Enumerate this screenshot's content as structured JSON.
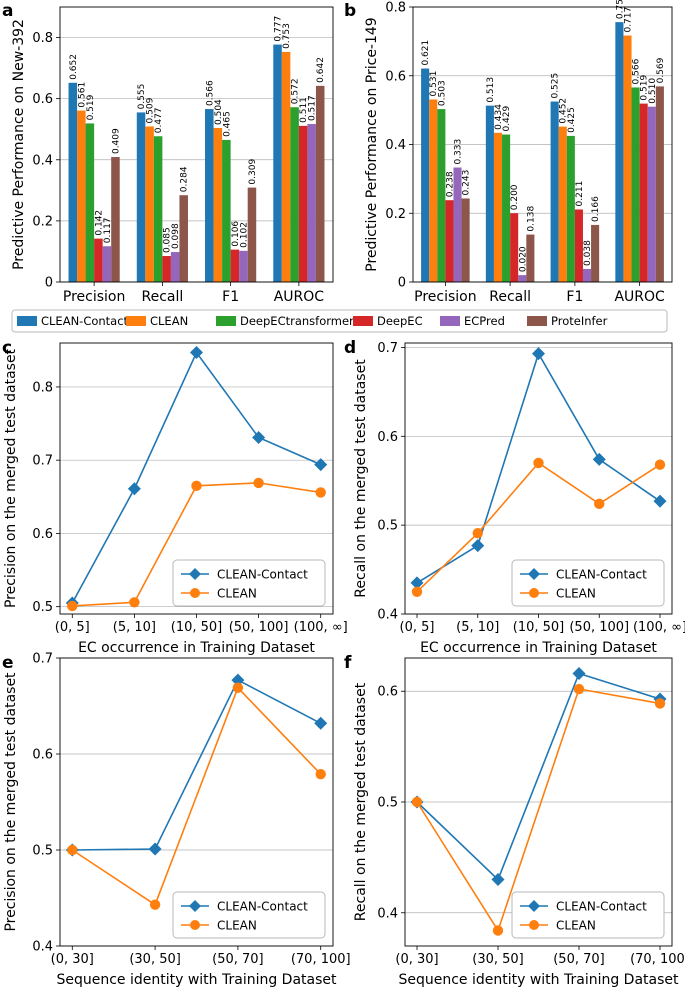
{
  "colors": {
    "CLEAN-Contact": "#1f77b4",
    "CLEAN": "#ff7f0e",
    "DeepECtransformer": "#2ca02c",
    "DeepEC": "#d62728",
    "ECPred": "#9467bd",
    "ProteInfer": "#8c564b",
    "grid": "#b0b0b0"
  },
  "chart_data": [
    {
      "panel": "a",
      "type": "bar",
      "ylabel": "Predictive Performance on New-392",
      "xlabel": "",
      "ylim": [
        0,
        0.9
      ],
      "yticks": [
        0.0,
        0.2,
        0.4,
        0.6,
        0.8
      ],
      "ytick_labels": [
        "0",
        "0.2",
        "0.4",
        "0.6",
        "0.8"
      ],
      "categories": [
        "Precision",
        "Recall",
        "F1",
        "AUROC"
      ],
      "series": [
        {
          "name": "CLEAN-Contact",
          "values": [
            0.652,
            0.555,
            0.566,
            0.777
          ],
          "labels": [
            "0.652",
            "0.555",
            "0.566",
            "0.777"
          ]
        },
        {
          "name": "CLEAN",
          "values": [
            0.561,
            0.509,
            0.504,
            0.753
          ],
          "labels": [
            "0.561",
            "0.509",
            "0.504",
            "0.753"
          ]
        },
        {
          "name": "DeepECtransformer",
          "values": [
            0.519,
            0.477,
            0.465,
            0.572
          ],
          "labels": [
            "0.519",
            "0.477",
            "0.465",
            "0.572"
          ]
        },
        {
          "name": "DeepEC",
          "values": [
            0.142,
            0.085,
            0.106,
            0.511
          ],
          "labels": [
            "0.142",
            "0.085",
            "0.106",
            "0.511"
          ]
        },
        {
          "name": "ECPred",
          "values": [
            0.117,
            0.098,
            0.102,
            0.517
          ],
          "labels": [
            "0.117",
            "0.098",
            "0.102",
            "0.517"
          ]
        },
        {
          "name": "ProteInfer",
          "values": [
            0.409,
            0.284,
            0.309,
            0.642
          ],
          "labels": [
            "0.409",
            "0.284",
            "0.309",
            "0.642"
          ]
        }
      ]
    },
    {
      "panel": "b",
      "type": "bar",
      "ylabel": "Predictive Performance on Price-149",
      "xlabel": "",
      "ylim": [
        0,
        0.8
      ],
      "yticks": [
        0.0,
        0.2,
        0.4,
        0.6,
        0.8
      ],
      "ytick_labels": [
        "0",
        "0.2",
        "0.4",
        "0.6",
        "0.8"
      ],
      "categories": [
        "Precision",
        "Recall",
        "F1",
        "AUROC"
      ],
      "series": [
        {
          "name": "CLEAN-Contact",
          "values": [
            0.621,
            0.513,
            0.525,
            0.756
          ],
          "labels": [
            "0.621",
            "0.513",
            "0.525",
            "0.756"
          ]
        },
        {
          "name": "CLEAN",
          "values": [
            0.531,
            0.434,
            0.452,
            0.717
          ],
          "labels": [
            "0.531",
            "0.434",
            "0.452",
            "0.717"
          ]
        },
        {
          "name": "DeepECtransformer",
          "values": [
            0.503,
            0.429,
            0.425,
            0.566
          ],
          "labels": [
            "0.503",
            "0.429",
            "0.425",
            "0.566"
          ]
        },
        {
          "name": "DeepEC",
          "values": [
            0.238,
            0.2,
            0.211,
            0.519
          ],
          "labels": [
            "0.238",
            "0.200",
            "0.211",
            "0.519"
          ]
        },
        {
          "name": "ECPred",
          "values": [
            0.333,
            0.02,
            0.038,
            0.51
          ],
          "labels": [
            "0.333",
            "0.020",
            "0.038",
            "0.510"
          ]
        },
        {
          "name": "ProteInfer",
          "values": [
            0.243,
            0.138,
            0.166,
            0.569
          ],
          "labels": [
            "0.243",
            "0.138",
            "0.166",
            "0.569"
          ]
        }
      ]
    },
    {
      "panel": "c",
      "type": "line",
      "xlabel": "EC occurrence in Training Dataset",
      "ylabel": "Precision on the merged test dataset",
      "categories": [
        "(0, 5]",
        "(5, 10]",
        "(10, 50]",
        "(50, 100]",
        "(100, ∞]"
      ],
      "ylim": [
        0.49,
        0.86
      ],
      "yticks": [
        0.5,
        0.6,
        0.7,
        0.8
      ],
      "ytick_labels": [
        "0.5",
        "0.6",
        "0.7",
        "0.8"
      ],
      "legend_position": "lower-right",
      "series": [
        {
          "name": "CLEAN-Contact",
          "marker": "diamond",
          "values": [
            0.505,
            0.661,
            0.847,
            0.731,
            0.694
          ]
        },
        {
          "name": "CLEAN",
          "marker": "circle",
          "values": [
            0.501,
            0.506,
            0.665,
            0.669,
            0.656
          ]
        }
      ]
    },
    {
      "panel": "d",
      "type": "line",
      "xlabel": "EC occurrence in Training Dataset",
      "ylabel": "Recall on the merged test dataset",
      "categories": [
        "(0, 5]",
        "(5, 10]",
        "(10, 50]",
        "(50, 100]",
        "(100, ∞]"
      ],
      "ylim": [
        0.4,
        0.705
      ],
      "yticks": [
        0.4,
        0.5,
        0.6,
        0.7
      ],
      "ytick_labels": [
        "0.4",
        "0.5",
        "0.6",
        "0.7"
      ],
      "legend_position": "lower-right",
      "series": [
        {
          "name": "CLEAN-Contact",
          "marker": "diamond",
          "values": [
            0.435,
            0.477,
            0.693,
            0.574,
            0.527
          ]
        },
        {
          "name": "CLEAN",
          "marker": "circle",
          "values": [
            0.425,
            0.491,
            0.57,
            0.524,
            0.568
          ]
        }
      ]
    },
    {
      "panel": "e",
      "type": "line",
      "xlabel": "Sequence identity with Training Dataset",
      "ylabel": "Precision on the merged test dataset",
      "categories": [
        "(0, 30]",
        "(30, 50]",
        "(50, 70]",
        "(70, 100]"
      ],
      "ylim": [
        0.4,
        0.7
      ],
      "yticks": [
        0.4,
        0.5,
        0.6,
        0.7
      ],
      "ytick_labels": [
        "0.4",
        "0.5",
        "0.6",
        "0.7"
      ],
      "legend_position": "lower-right",
      "series": [
        {
          "name": "CLEAN-Contact",
          "marker": "diamond",
          "values": [
            0.5,
            0.501,
            0.677,
            0.632
          ]
        },
        {
          "name": "CLEAN",
          "marker": "circle",
          "values": [
            0.5,
            0.443,
            0.669,
            0.579
          ]
        }
      ]
    },
    {
      "panel": "f",
      "type": "line",
      "xlabel": "Sequence identity with Training Dataset",
      "ylabel": "Recall on the merged test dataset",
      "categories": [
        "(0, 30]",
        "(30, 50]",
        "(50, 70]",
        "(70, 100]"
      ],
      "ylim": [
        0.37,
        0.63
      ],
      "yticks": [
        0.4,
        0.5,
        0.6
      ],
      "ytick_labels": [
        "0.4",
        "0.5",
        "0.6"
      ],
      "legend_position": "lower-right",
      "series": [
        {
          "name": "CLEAN-Contact",
          "marker": "diamond",
          "values": [
            0.5,
            0.43,
            0.616,
            0.593
          ]
        },
        {
          "name": "CLEAN",
          "marker": "circle",
          "values": [
            0.5,
            0.384,
            0.602,
            0.589
          ]
        }
      ]
    }
  ],
  "legend_items": [
    "CLEAN-Contact",
    "CLEAN",
    "DeepECtransformer",
    "DeepEC",
    "ECPred",
    "ProteInfer"
  ],
  "panel_labels": [
    "a",
    "b",
    "c",
    "d",
    "e",
    "f"
  ]
}
